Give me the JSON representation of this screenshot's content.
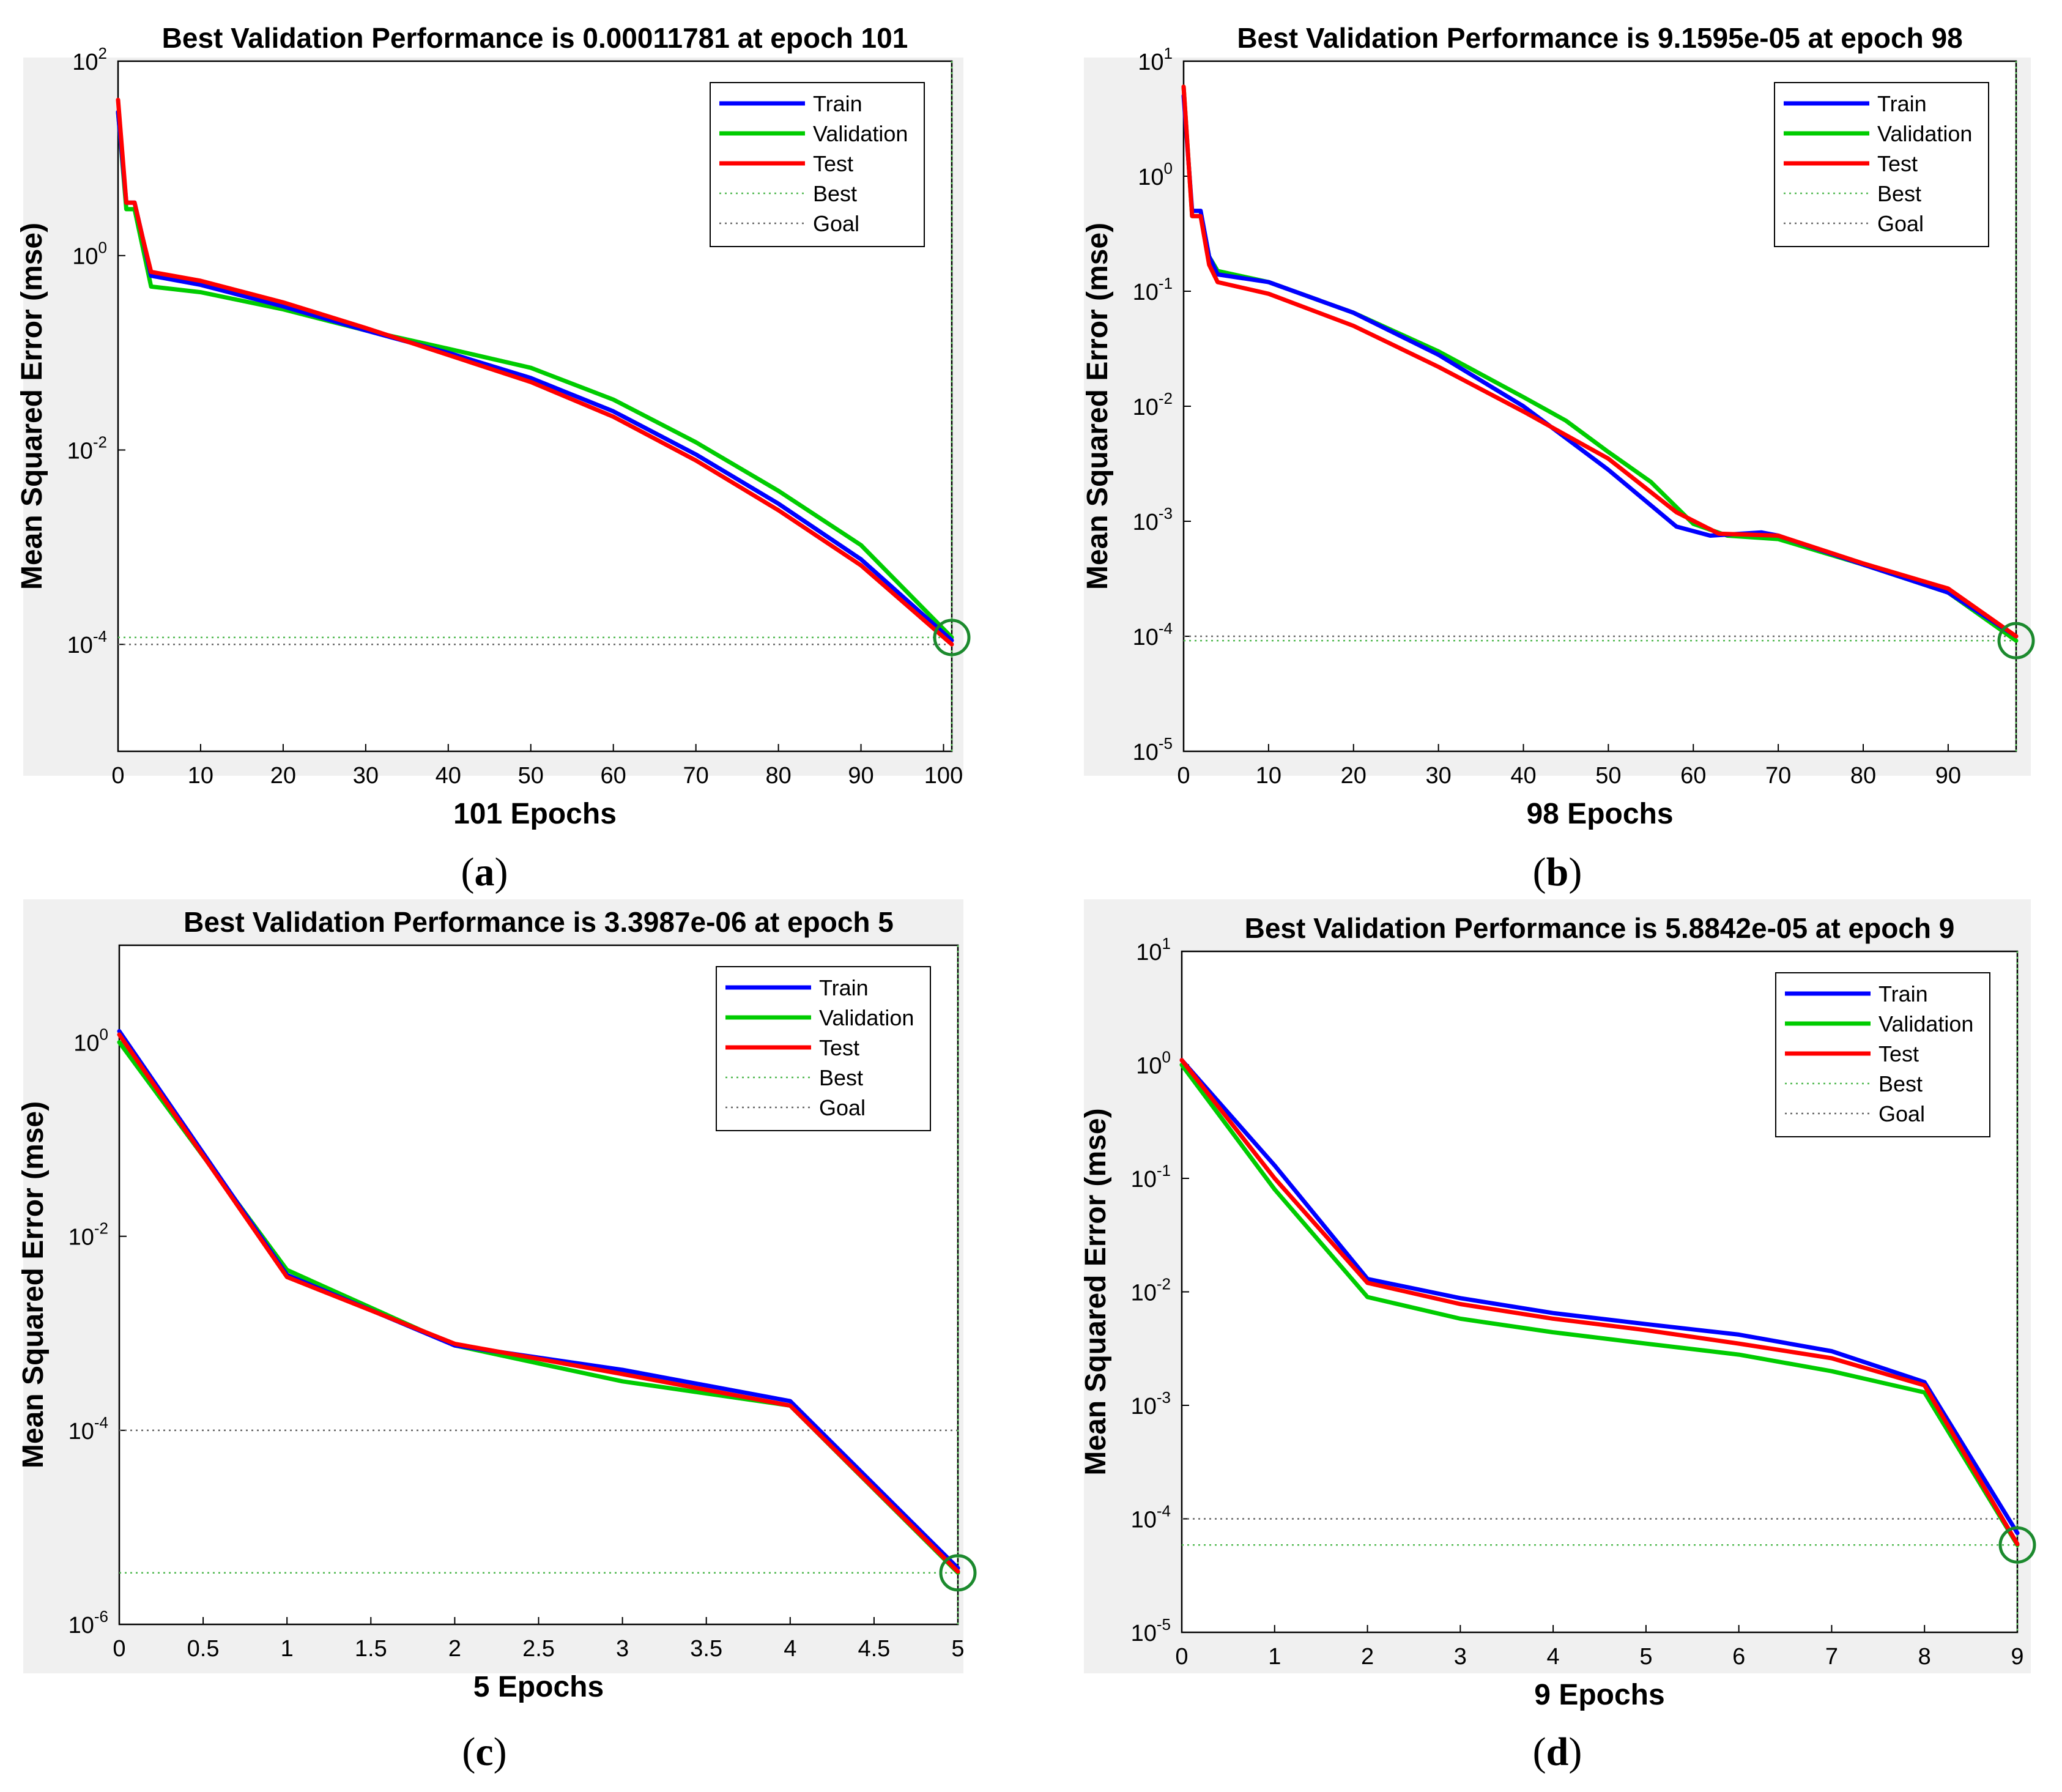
{
  "colors": {
    "train": "#0000ff",
    "validation": "#00cc00",
    "test": "#ff0000",
    "best": "#4fb84f",
    "goal": "#666666",
    "best_marker": "#1c8a2e"
  },
  "chart_data": [
    {
      "type": "line",
      "panel": "a",
      "caption": "(a)",
      "caption_letter": "a",
      "title": "Best Validation Performance is 0.00011781 at epoch 101",
      "xlabel": "101 Epochs",
      "ylabel": "Mean Squared Error  (mse)",
      "yscale": "log",
      "xlim": [
        0,
        101
      ],
      "ylim_log10": [
        -5.1,
        2
      ],
      "xticks": [
        0,
        10,
        20,
        30,
        40,
        50,
        60,
        70,
        80,
        90,
        100
      ],
      "yticks_exp": [
        -4,
        -2,
        0,
        2
      ],
      "legend": [
        "Train",
        "Validation",
        "Test",
        "Best",
        "Goal"
      ],
      "legend_position": "top-right",
      "best_epoch": 101,
      "best_value": 0.00011781,
      "goal": 0.0001,
      "series": [
        {
          "name": "Train",
          "color_key": "train",
          "x": [
            0,
            1,
            2,
            3,
            4,
            10,
            20,
            30,
            40,
            50,
            60,
            70,
            80,
            90,
            101
          ],
          "y": [
            30,
            3.5,
            3.5,
            1.5,
            0.62,
            0.5,
            0.3,
            0.17,
            0.1,
            0.055,
            0.025,
            0.009,
            0.0028,
            0.00075,
            0.00011
          ]
        },
        {
          "name": "Validation",
          "color_key": "validation",
          "x": [
            0,
            1,
            2,
            3,
            4,
            10,
            20,
            30,
            40,
            50,
            60,
            70,
            80,
            90,
            101
          ],
          "y": [
            30,
            3.0,
            3.0,
            1.2,
            0.48,
            0.42,
            0.28,
            0.17,
            0.11,
            0.07,
            0.033,
            0.012,
            0.0038,
            0.00105,
            0.00011781
          ]
        },
        {
          "name": "Test",
          "color_key": "test",
          "x": [
            0,
            1,
            2,
            3,
            4,
            10,
            20,
            30,
            40,
            50,
            60,
            70,
            80,
            90,
            101
          ],
          "y": [
            40,
            3.5,
            3.5,
            1.5,
            0.68,
            0.55,
            0.33,
            0.18,
            0.095,
            0.05,
            0.022,
            0.0078,
            0.0024,
            0.00065,
            0.0001
          ]
        }
      ]
    },
    {
      "type": "line",
      "panel": "b",
      "caption": "(b)",
      "caption_letter": "b",
      "title": "Best Validation Performance is 9.1595e-05 at epoch 98",
      "xlabel": "98 Epochs",
      "ylabel": "Mean Squared Error  (mse)",
      "yscale": "log",
      "xlim": [
        0,
        98
      ],
      "ylim_log10": [
        -5,
        1
      ],
      "xticks": [
        0,
        10,
        20,
        30,
        40,
        50,
        60,
        70,
        80,
        90
      ],
      "yticks_exp": [
        -5,
        -4,
        -3,
        -2,
        -1,
        0,
        1
      ],
      "legend": [
        "Train",
        "Validation",
        "Test",
        "Best",
        "Goal"
      ],
      "legend_position": "top-right",
      "best_epoch": 98,
      "best_value": 9.1595e-05,
      "goal": 0.0001,
      "series": [
        {
          "name": "Train",
          "color_key": "train",
          "x": [
            0,
            1,
            2,
            3,
            4,
            10,
            20,
            30,
            40,
            50,
            58,
            62,
            68,
            70,
            80,
            90,
            98
          ],
          "y": [
            5,
            0.5,
            0.5,
            0.2,
            0.14,
            0.12,
            0.065,
            0.028,
            0.01,
            0.0028,
            0.0009,
            0.00075,
            0.0008,
            0.00075,
            0.00042,
            0.00024,
            0.0001
          ]
        },
        {
          "name": "Validation",
          "color_key": "validation",
          "x": [
            0,
            1,
            2,
            3,
            4,
            10,
            20,
            30,
            40,
            45,
            50,
            55,
            60,
            64,
            70,
            80,
            90,
            98
          ],
          "y": [
            6,
            0.45,
            0.45,
            0.2,
            0.15,
            0.12,
            0.065,
            0.03,
            0.012,
            0.0075,
            0.004,
            0.0022,
            0.00095,
            0.00075,
            0.0007,
            0.00042,
            0.00024,
            9.1595e-05
          ]
        },
        {
          "name": "Test",
          "color_key": "test",
          "x": [
            0,
            1,
            2,
            3,
            4,
            10,
            20,
            30,
            40,
            50,
            58,
            63,
            70,
            80,
            90,
            98
          ],
          "y": [
            6,
            0.45,
            0.45,
            0.17,
            0.12,
            0.095,
            0.05,
            0.022,
            0.009,
            0.0035,
            0.0012,
            0.00078,
            0.00075,
            0.00043,
            0.00026,
            0.0001
          ]
        }
      ]
    },
    {
      "type": "line",
      "panel": "c",
      "caption": "(c)",
      "caption_letter": "c",
      "title": "Best Validation Performance is 3.3987e-06 at epoch 5",
      "xlabel": "5 Epochs",
      "ylabel": "Mean Squared Error  (mse)",
      "yscale": "log",
      "xlim": [
        0,
        5
      ],
      "ylim_log10": [
        -6,
        1
      ],
      "xticks": [
        0,
        0.5,
        1,
        1.5,
        2,
        2.5,
        3,
        3.5,
        4,
        4.5,
        5
      ],
      "yticks_exp": [
        -6,
        -4,
        -2,
        0
      ],
      "legend": [
        "Train",
        "Validation",
        "Test",
        "Best",
        "Goal"
      ],
      "legend_position": "top-right",
      "best_epoch": 5,
      "best_value": 3.3987e-06,
      "goal": 0.0001,
      "series": [
        {
          "name": "Train",
          "color_key": "train",
          "x": [
            0,
            1,
            2,
            3,
            4,
            5
          ],
          "y": [
            1.3,
            0.004,
            0.00075,
            0.00042,
            0.0002,
            3.8e-06
          ]
        },
        {
          "name": "Validation",
          "color_key": "validation",
          "x": [
            0,
            1,
            2,
            3,
            4,
            5
          ],
          "y": [
            1.0,
            0.0045,
            0.00075,
            0.00032,
            0.00018,
            3.3987e-06
          ]
        },
        {
          "name": "Test",
          "color_key": "test",
          "x": [
            0,
            1,
            2,
            3,
            4,
            5
          ],
          "y": [
            1.2,
            0.0038,
            0.00078,
            0.00038,
            0.00018,
            3.5e-06
          ]
        }
      ]
    },
    {
      "type": "line",
      "panel": "d",
      "caption": "(d)",
      "caption_letter": "d",
      "title": "Best Validation Performance is 5.8842e-05 at epoch 9",
      "xlabel": "9 Epochs",
      "ylabel": "Mean Squared Error  (mse)",
      "yscale": "log",
      "xlim": [
        0,
        9
      ],
      "ylim_log10": [
        -5,
        1
      ],
      "xticks": [
        0,
        1,
        2,
        3,
        4,
        5,
        6,
        7,
        8,
        9
      ],
      "yticks_exp": [
        -5,
        -4,
        -3,
        -2,
        -1,
        0,
        1
      ],
      "legend": [
        "Train",
        "Validation",
        "Test",
        "Best",
        "Goal"
      ],
      "legend_position": "top-right",
      "best_epoch": 9,
      "best_value": 5.8842e-05,
      "goal": 0.0001,
      "series": [
        {
          "name": "Train",
          "color_key": "train",
          "x": [
            0,
            1,
            2,
            3,
            4,
            5,
            6,
            7,
            8,
            9
          ],
          "y": [
            1.1,
            0.13,
            0.013,
            0.0088,
            0.0065,
            0.0052,
            0.0042,
            0.003,
            0.0016,
            7.5e-05
          ]
        },
        {
          "name": "Validation",
          "color_key": "validation",
          "x": [
            0,
            1,
            2,
            3,
            4,
            5,
            6,
            7,
            8,
            9
          ],
          "y": [
            1.0,
            0.08,
            0.009,
            0.0058,
            0.0044,
            0.0035,
            0.0028,
            0.002,
            0.0013,
            5.8842e-05
          ]
        },
        {
          "name": "Test",
          "color_key": "test",
          "x": [
            0,
            1,
            2,
            3,
            4,
            5,
            6,
            7,
            8,
            9
          ],
          "y": [
            1.1,
            0.1,
            0.012,
            0.0078,
            0.0058,
            0.0046,
            0.0035,
            0.0026,
            0.0015,
            6e-05
          ]
        }
      ]
    }
  ]
}
